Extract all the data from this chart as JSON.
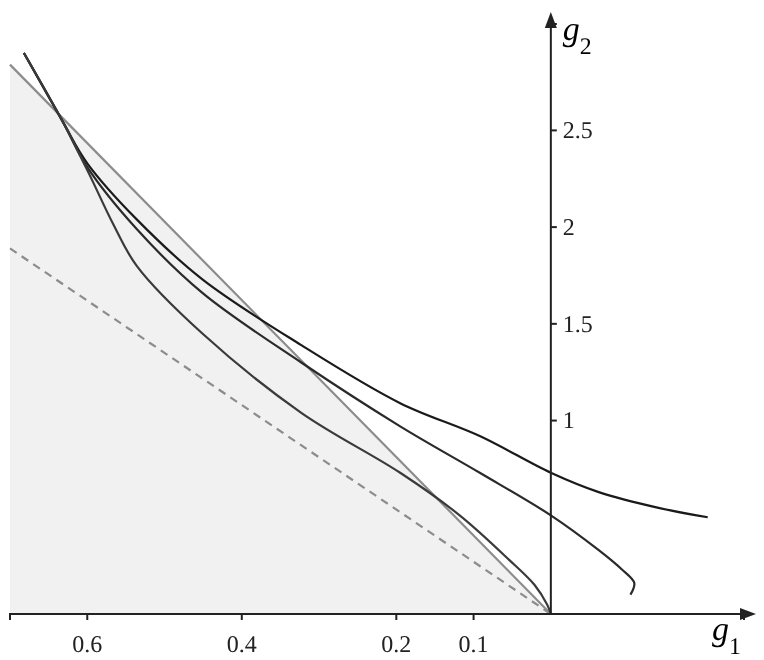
{
  "chart_data": {
    "type": "line",
    "xlabel": "g$_{1}$",
    "ylabel": "g$_{2}$",
    "xlim": [
      0.7,
      -0.25
    ],
    "ylim": [
      0,
      3.05
    ],
    "xticks": [
      0.6,
      0.4,
      0.2,
      0.1
    ],
    "yticks": [
      1,
      1.5,
      2,
      2.5
    ],
    "grid": false,
    "marker": "none",
    "series": [
      {
        "type": "area",
        "color": "#8c8c8c",
        "x": [
          0.7,
          0
        ],
        "values": [
          2.84,
          0
        ]
      },
      {
        "color": "#8c8c8c",
        "line_style": "dashed",
        "x": [
          0.7,
          0
        ],
        "values": [
          1.89,
          0
        ]
      },
      {
        "color": "#1a1a1a",
        "x": [
          0.682,
          0.631,
          0.6,
          0.536,
          0.451,
          0.323,
          0.195,
          0.092,
          0,
          -0.062,
          -0.138,
          -0.203
        ],
        "values": [
          2.9,
          2.54,
          2.33,
          2.04,
          1.73,
          1.39,
          1.09,
          0.92,
          0.73,
          0.63,
          0.55,
          0.5
        ]
      },
      {
        "color": "#2a2a2a",
        "x": [
          0.682,
          0.631,
          0.6,
          0.536,
          0.451,
          0.323,
          0.195,
          0.092,
          0,
          -0.062,
          -0.092,
          -0.108,
          -0.103
        ],
        "values": [
          2.9,
          2.54,
          2.31,
          1.99,
          1.66,
          1.3,
          0.97,
          0.73,
          0.51,
          0.33,
          0.23,
          0.16,
          0.1
        ]
      },
      {
        "color": "#3a3a3a",
        "x": [
          0.682,
          0.631,
          0.597,
          0.567,
          0.536,
          0.451,
          0.323,
          0.195,
          0.118,
          0.054,
          0.021,
          0.005,
          0
        ],
        "values": [
          2.9,
          2.54,
          2.27,
          2.02,
          1.8,
          1.45,
          1.04,
          0.73,
          0.51,
          0.28,
          0.15,
          0.05,
          0
        ]
      }
    ]
  }
}
